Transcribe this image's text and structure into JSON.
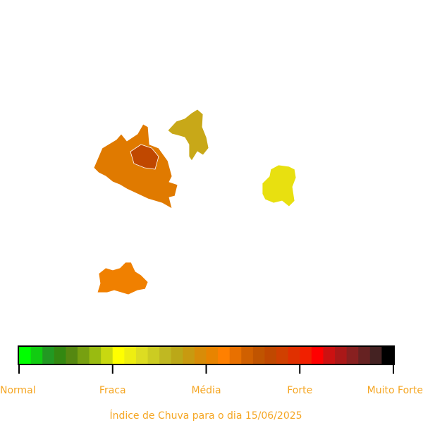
{
  "legend": {
    "colors": [
      "#00ff00",
      "#11cc11",
      "#229922",
      "#338811",
      "#558811",
      "#77a011",
      "#99bb11",
      "#c8d810",
      "#ffff00",
      "#eeee11",
      "#dddd22",
      "#cccc22",
      "#c0b822",
      "#bba818",
      "#c89a10",
      "#d88c08",
      "#e88400",
      "#ff8000",
      "#e87000",
      "#d06000",
      "#c05400",
      "#c04800",
      "#d04000",
      "#e03000",
      "#f02000",
      "#ff0000",
      "#cc1111",
      "#aa1818",
      "#882020",
      "#662222",
      "#442222",
      "#000000"
    ],
    "labels": [
      "Normal",
      "Fraca",
      "Média",
      "Forte",
      "Muito Forte"
    ]
  },
  "caption": "Índice de Chuva para o dia 15/06/2025"
}
